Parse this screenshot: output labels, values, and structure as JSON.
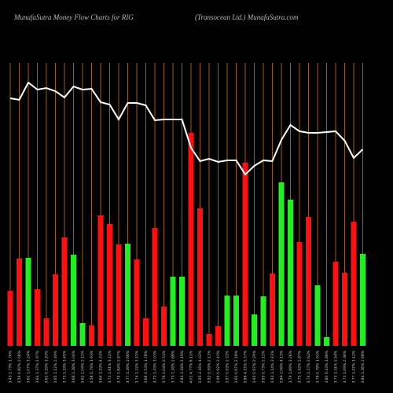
{
  "chart_data": {
    "type": "bar",
    "title": "MunafaSutra  Money Flow  Charts for RIG",
    "subtitle": "(Transocean  Ltd.) MunafaSutra.com",
    "categories": [
      "3.43 1.73% 1.76%",
      "3.59 0.82% 2.06%",
      "3.61 1.07% 3.24%",
      "3.64 1.37% 2.97%",
      "3.61 0.55% 1.93%",
      "3.65 1.12% 2.49%",
      "3.73 1.19% 3.45%",
      "3.66 1.38% 3.04%",
      "3.62 1.04% 2.12%",
      "3.58 0.79% 1.93%",
      "3.64 2.19% 4.31%",
      "3.71 1.81% 3.22%",
      "3.79 1.64% 2.87%",
      "3.77 1.39% 2.66%",
      "3.74 1.22% 3.15%",
      "3.68 0.53% 1.78%",
      "3.72 1.43% 3.03%",
      "3.76 1.04% 2.51%",
      "3.75 1.16% 2.68%",
      "3.81 1.18% 2.19%",
      "4.01 4.77% 6.11%",
      "3.95 2.16% 4.02%",
      "3.92 0.59% 2.11%",
      "3.99 0.92% 2.43%",
      "3.97 0.93% 2.31%",
      "3.92 0.97% 2.18%",
      "3.86 4.15% 5.37%",
      "3.93 0.97% 2.29%",
      "3.95 0.73% 2.12%",
      "3.92 1.14% 2.41%",
      "3.84 2.06% 4.13%",
      "3.79 1.69% 3.26%",
      "3.75 1.52% 2.87%",
      "3.74 1.27% 2.62%",
      "3.76 0.78% 1.92%",
      "3.80 0.43% 1.88%",
      "3.73 1.31% 2.54%",
      "3.71 1.09% 2.36%",
      "3.77 1.47% 3.12%",
      "3.84 1.26% 2.98%"
    ],
    "series": [
      {
        "name": "Money Flow",
        "values": [
          70,
          111,
          112,
          72,
          35,
          91,
          138,
          116,
          29,
          26,
          166,
          155,
          129,
          130,
          110,
          35,
          150,
          50,
          88,
          88,
          271,
          175,
          15,
          25,
          64,
          64,
          233,
          40,
          63,
          92,
          208,
          186,
          132,
          164,
          77,
          11,
          107,
          93,
          158,
          117
        ],
        "colors": [
          "#ff1010",
          "#ff1010",
          "#22ee22",
          "#ff1010",
          "#ff1010",
          "#ff1010",
          "#ff1010",
          "#22ee22",
          "#22ee22",
          "#ff1010",
          "#ff1010",
          "#ff1010",
          "#ff1010",
          "#22ee22",
          "#ff1010",
          "#ff1010",
          "#ff1010",
          "#ff1010",
          "#22ee22",
          "#22ee22",
          "#ff1010",
          "#ff1010",
          "#ff1010",
          "#ff1010",
          "#22ee22",
          "#22ee22",
          "#ff1010",
          "#22ee22",
          "#22ee22",
          "#ff1010",
          "#22ee22",
          "#22ee22",
          "#ff1010",
          "#ff1010",
          "#22ee22",
          "#22ee22",
          "#ff1010",
          "#ff1010",
          "#ff1010",
          "#22ee22"
        ]
      },
      {
        "name": "Price",
        "type": "line",
        "color": "#ffffff",
        "values": [
          315,
          313,
          335,
          326,
          328,
          324,
          316,
          330,
          326,
          327,
          310,
          307,
          288,
          309,
          309,
          306,
          287,
          288,
          288,
          288,
          252,
          235,
          238,
          234,
          236,
          236,
          218,
          229,
          236,
          235,
          262,
          281,
          273,
          271,
          271,
          272,
          273,
          261,
          239,
          250
        ]
      }
    ],
    "ylim": [
      0,
      360
    ],
    "grid_color": "#c87800"
  }
}
